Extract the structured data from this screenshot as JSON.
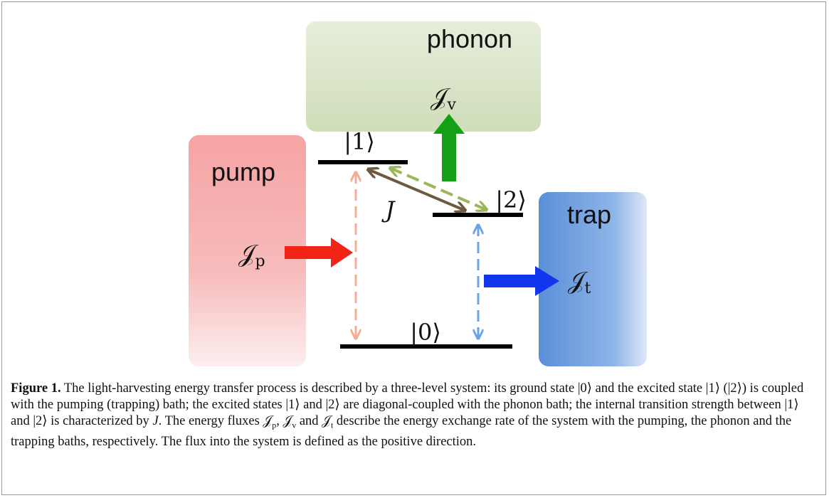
{
  "figure": {
    "labels": {
      "phonon": "phonon",
      "pump": "pump",
      "trap": "trap",
      "level1": "|1⟩",
      "level2": "|2⟩",
      "level0": "|0⟩",
      "coupling": "J"
    },
    "fluxes": {
      "pump": {
        "symbol": "𝒥",
        "sub": "p"
      },
      "phonon": {
        "symbol": "𝒥",
        "sub": "v"
      },
      "trap": {
        "symbol": "𝒥",
        "sub": "t"
      }
    },
    "caption": {
      "label": "Figure 1.",
      "parts": [
        " The light-harvesting energy transfer process is described by a three-level system: its ground state |0⟩ and the excited state |1⟩ (|2⟩) is coupled with the pumping (trapping) bath; the excited states |1⟩ and |2⟩ are diagonal-coupled with the phonon bath; the internal transition strength between |1⟩ and |2⟩ is characterized by ",
        {
          "italic": "J"
        },
        ". The energy fluxes ",
        {
          "symbol": "𝒥",
          "sub": "p"
        },
        ", ",
        {
          "symbol": "𝒥",
          "sub": "v"
        },
        " and ",
        {
          "symbol": "𝒥",
          "sub": "t"
        },
        " describe the energy exchange rate of the system with the pumping, the phonon and the trapping baths, respectively. The flux into the system is defined as the positive direction."
      ]
    }
  }
}
